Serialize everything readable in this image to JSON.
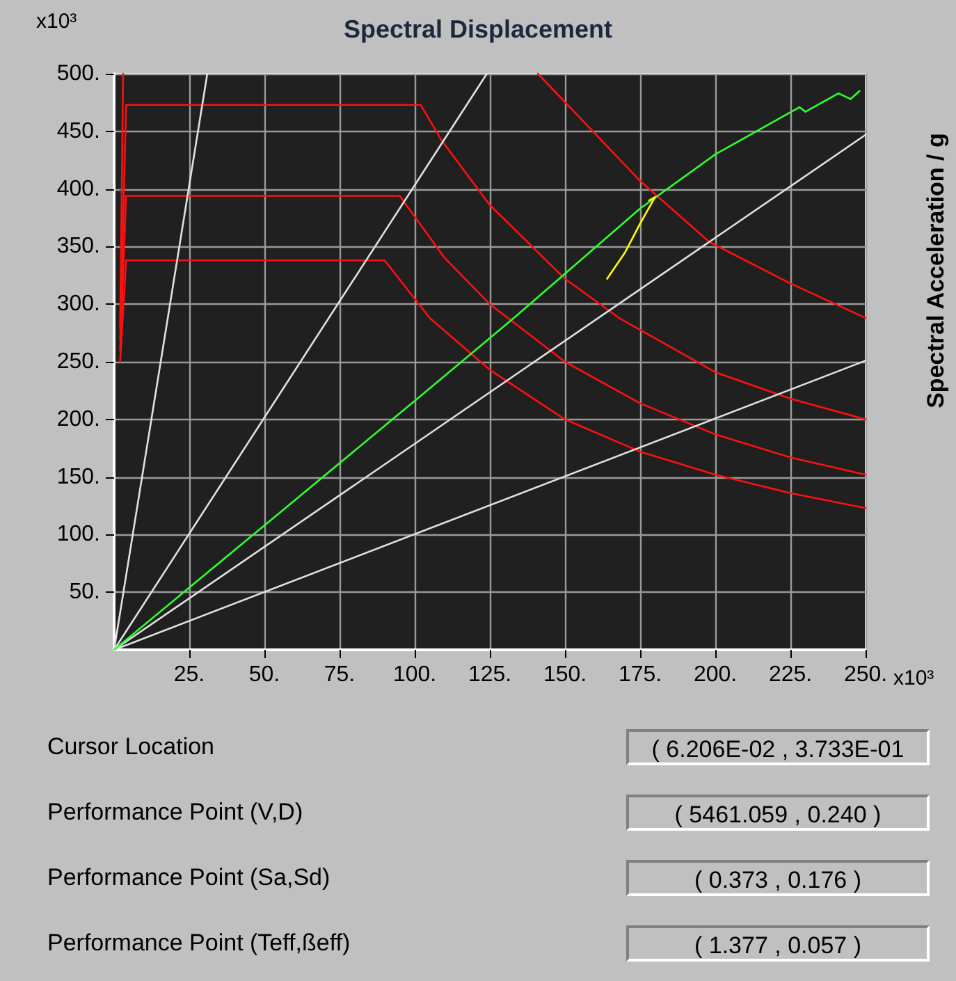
{
  "chart_data": {
    "type": "line",
    "title": "Spectral Displacement",
    "ylabel": "Spectral Acceleration / g",
    "annotations": [
      "x10³",
      "x10³",
      "Cursor Location",
      "( 6.206E-02 , 3.733E-01",
      "Performance Point (V,D)",
      "( 5461.059 , 0.240 )",
      "Performance Point (Sa,Sd)",
      "( 0.373 , 0.176 )",
      "Performance Point (Teff,ßeff)",
      "( 1.377 , 0.057 )"
    ],
    "xlim": [
      0,
      250
    ],
    "ylim": [
      0,
      500
    ],
    "xticks": [
      {
        "value": 25,
        "label": "25."
      },
      {
        "value": 50,
        "label": "50."
      },
      {
        "value": 75,
        "label": "75."
      },
      {
        "value": 100,
        "label": "100."
      },
      {
        "value": 125,
        "label": "125."
      },
      {
        "value": 150,
        "label": "150."
      },
      {
        "value": 175,
        "label": "175."
      },
      {
        "value": 200,
        "label": "200."
      },
      {
        "value": 225,
        "label": "225."
      },
      {
        "value": 250,
        "label": "250."
      }
    ],
    "yticks": [
      {
        "value": 50,
        "label": "50."
      },
      {
        "value": 100,
        "label": "100."
      },
      {
        "value": 150,
        "label": "150."
      },
      {
        "value": 200,
        "label": "200."
      },
      {
        "value": 250,
        "label": "250."
      },
      {
        "value": 300,
        "label": "300."
      },
      {
        "value": 350,
        "label": "350."
      },
      {
        "value": 400,
        "label": "400."
      },
      {
        "value": 450,
        "label": "450."
      },
      {
        "value": 500,
        "label": "500."
      }
    ],
    "grid": true,
    "marker": "none",
    "line_style": "solid",
    "series": [
      {
        "color": "#ff1010",
        "x": [
          2,
          4,
          102,
          109,
          125,
          150,
          168,
          200,
          225,
          250
        ],
        "values": [
          270,
          473,
          473,
          442,
          386,
          322,
          288,
          241,
          218,
          200
        ]
      },
      {
        "color": "#ff1010",
        "x": [
          2,
          4,
          95,
          110,
          125,
          150,
          175,
          200,
          225,
          250
        ],
        "values": [
          260,
          394,
          394,
          340,
          300,
          250,
          214,
          187,
          167,
          152
        ]
      },
      {
        "color": "#ff1010",
        "x": [
          2,
          4,
          90,
          105,
          125,
          150,
          175,
          200,
          225,
          250
        ],
        "values": [
          250,
          338,
          338,
          288,
          243,
          200,
          172,
          152,
          136,
          123
        ]
      },
      {
        "color": "#ff1010",
        "x": [
          2,
          3,
          140,
          141,
          175,
          198,
          225,
          250
        ],
        "values": [
          280,
          500,
          null,
          500,
          407,
          354,
          318,
          288
        ]
      },
      {
        "color": "#e0e0e0",
        "x": [
          0,
          31
        ],
        "values": [
          0,
          500
        ]
      },
      {
        "color": "#e0e0e0",
        "x": [
          0,
          124
        ],
        "values": [
          0,
          500
        ]
      },
      {
        "color": "#e0e0e0",
        "x": [
          0,
          250
        ],
        "values": [
          0,
          447
        ]
      },
      {
        "color": "#e0e0e0",
        "x": [
          0,
          250
        ],
        "values": [
          0,
          251
        ]
      },
      {
        "color": "#30ff30",
        "x": [
          0,
          50,
          100,
          133,
          175,
          200,
          228,
          230,
          241,
          245,
          248
        ],
        "values": [
          0,
          108,
          216,
          288,
          383,
          430,
          471,
          467,
          483,
          478,
          485
        ]
      },
      {
        "color": "#ffff00",
        "x": [
          164,
          170,
          175,
          180,
          178
        ],
        "values": [
          322,
          345,
          370,
          393,
          390
        ]
      }
    ]
  }
}
